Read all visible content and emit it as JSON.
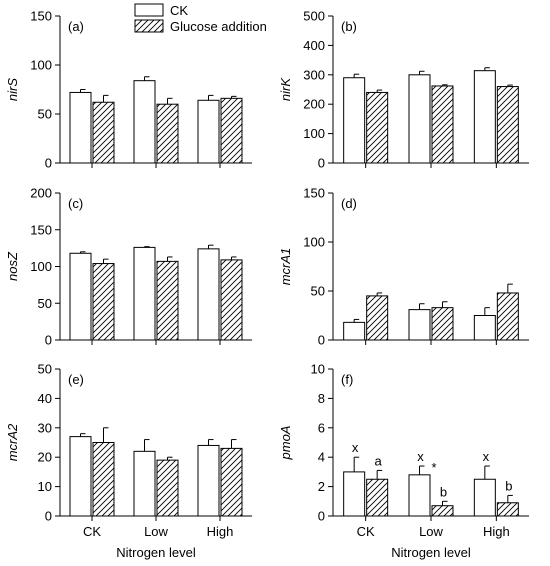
{
  "legend": [
    {
      "label": "CK",
      "pattern": "open"
    },
    {
      "label": "Glucose addition",
      "pattern": "hatched"
    }
  ],
  "chart_data": [
    {
      "type": "bar",
      "panel_label": "(a)",
      "ylabel": "nirS",
      "xlabel": "",
      "categories": [
        "CK",
        "Low",
        "High"
      ],
      "ylim": [
        0,
        150
      ],
      "yticks": [
        0,
        50,
        100,
        150
      ],
      "show_xticklabels": false,
      "series": [
        {
          "name": "CK",
          "values": [
            72,
            84,
            64
          ],
          "errors": [
            3,
            4,
            5
          ]
        },
        {
          "name": "Glucose addition",
          "values": [
            62,
            60,
            66
          ],
          "errors": [
            7,
            6,
            2
          ]
        }
      ],
      "annotations": []
    },
    {
      "type": "bar",
      "panel_label": "(b)",
      "ylabel": "nirK",
      "xlabel": "",
      "categories": [
        "CK",
        "Low",
        "High"
      ],
      "ylim": [
        0,
        500
      ],
      "yticks": [
        0,
        100,
        200,
        300,
        400,
        500
      ],
      "show_xticklabels": false,
      "series": [
        {
          "name": "CK",
          "values": [
            290,
            300,
            314
          ],
          "errors": [
            12,
            12,
            10
          ]
        },
        {
          "name": "Glucose addition",
          "values": [
            240,
            262,
            260
          ],
          "errors": [
            8,
            4,
            5
          ]
        }
      ],
      "annotations": []
    },
    {
      "type": "bar",
      "panel_label": "(c)",
      "ylabel": "nosZ",
      "xlabel": "",
      "categories": [
        "CK",
        "Low",
        "High"
      ],
      "ylim": [
        0,
        200
      ],
      "yticks": [
        0,
        50,
        100,
        150,
        200
      ],
      "show_xticklabels": false,
      "series": [
        {
          "name": "CK",
          "values": [
            118,
            126,
            124
          ],
          "errors": [
            2,
            1,
            5
          ]
        },
        {
          "name": "Glucose addition",
          "values": [
            104,
            107,
            109
          ],
          "errors": [
            6,
            6,
            4
          ]
        }
      ],
      "annotations": []
    },
    {
      "type": "bar",
      "panel_label": "(d)",
      "ylabel": "mcrA1",
      "xlabel": "",
      "categories": [
        "CK",
        "Low",
        "High"
      ],
      "ylim": [
        0,
        150
      ],
      "yticks": [
        0,
        50,
        100,
        150
      ],
      "show_xticklabels": false,
      "series": [
        {
          "name": "CK",
          "values": [
            18,
            31,
            25
          ],
          "errors": [
            3,
            6,
            8
          ]
        },
        {
          "name": "Glucose addition",
          "values": [
            45,
            33,
            48
          ],
          "errors": [
            3,
            6,
            9
          ]
        }
      ],
      "annotations": []
    },
    {
      "type": "bar",
      "panel_label": "(e)",
      "ylabel": "mcrA2",
      "xlabel": "Nitrogen level",
      "categories": [
        "CK",
        "Low",
        "High"
      ],
      "ylim": [
        0,
        50
      ],
      "yticks": [
        0,
        10,
        20,
        30,
        40,
        50
      ],
      "show_xticklabels": true,
      "series": [
        {
          "name": "CK",
          "values": [
            27,
            22,
            24
          ],
          "errors": [
            1,
            4,
            2
          ]
        },
        {
          "name": "Glucose addition",
          "values": [
            25,
            19,
            23
          ],
          "errors": [
            5,
            1,
            3
          ]
        }
      ],
      "annotations": []
    },
    {
      "type": "bar",
      "panel_label": "(f)",
      "ylabel": "pmoA",
      "xlabel": "Nitrogen level",
      "categories": [
        "CK",
        "Low",
        "High"
      ],
      "ylim": [
        0,
        10
      ],
      "yticks": [
        0,
        2,
        4,
        6,
        8,
        10
      ],
      "show_xticklabels": true,
      "series": [
        {
          "name": "CK",
          "values": [
            3.0,
            2.8,
            2.5
          ],
          "errors": [
            1.0,
            0.6,
            0.9
          ]
        },
        {
          "name": "Glucose addition",
          "values": [
            2.5,
            0.7,
            0.9
          ],
          "errors": [
            0.6,
            0.3,
            0.5
          ]
        }
      ],
      "annotations": [
        {
          "category": "CK",
          "series": 0,
          "text": "x"
        },
        {
          "category": "CK",
          "series": 1,
          "text": "a"
        },
        {
          "category": "Low",
          "series": 0,
          "text": "x"
        },
        {
          "category": "Low",
          "series": 1,
          "text": "b"
        },
        {
          "category": "Low",
          "between": true,
          "text": "*"
        },
        {
          "category": "High",
          "series": 0,
          "text": "x"
        },
        {
          "category": "High",
          "series": 1,
          "text": "b"
        }
      ]
    }
  ]
}
